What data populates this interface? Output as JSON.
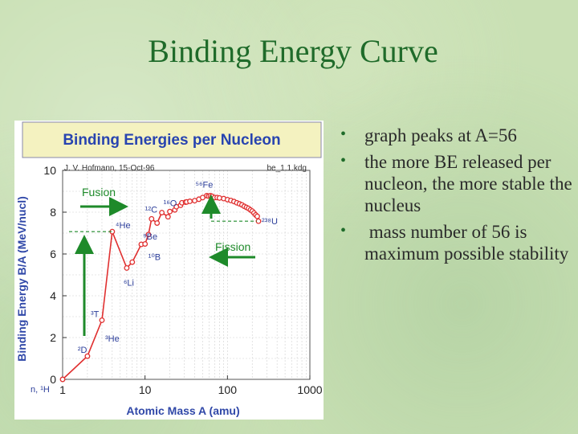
{
  "slide": {
    "title": "Binding Energy Curve",
    "bullets": [
      "graph peaks at A=56",
      "the more BE released per nucleon, the more stable the nucleus",
      " mass number of 56 is maximum possible stability"
    ]
  },
  "colors": {
    "title": "#1f6b2a",
    "curve": "#e03030",
    "arrow": "#1e8a2a",
    "chart_title_text": "#2844b0",
    "chart_title_bg": "#f4f2c0",
    "axis_text": "#3048a8"
  },
  "chart_data": {
    "type": "line",
    "title": "Binding Energies per Nucleon",
    "author": "J. V. Hofmann, 15-Oct-96",
    "file": "be_1.1.kdg",
    "xlabel": "Atomic Mass A (amu)",
    "ylabel": "Binding Energy B/A (MeV/nucl)",
    "xscale": "log",
    "xlim": [
      1,
      1000
    ],
    "ylim": [
      0,
      10
    ],
    "x_ticks": [
      "1",
      "10",
      "100",
      "1000"
    ],
    "y_ticks": [
      "0",
      "2",
      "4",
      "6",
      "8",
      "10"
    ],
    "x_tick_values": [
      1,
      10,
      100,
      1000
    ],
    "y_tick_values": [
      0,
      2,
      4,
      6,
      8,
      10
    ],
    "grid": true,
    "series": [
      {
        "values": [
          [
            1,
            0
          ],
          [
            2,
            1.11
          ],
          [
            3,
            2.83
          ],
          [
            4,
            7.07
          ],
          [
            6,
            5.33
          ],
          [
            7,
            5.61
          ],
          [
            9,
            6.46
          ],
          [
            10,
            6.48
          ],
          [
            11,
            6.93
          ],
          [
            12,
            7.68
          ],
          [
            14,
            7.48
          ],
          [
            16,
            7.98
          ],
          [
            19,
            7.78
          ],
          [
            20,
            8.03
          ],
          [
            23,
            8.11
          ],
          [
            24,
            8.26
          ],
          [
            27,
            8.33
          ],
          [
            28,
            8.45
          ],
          [
            31,
            8.48
          ],
          [
            32,
            8.49
          ],
          [
            35,
            8.52
          ],
          [
            40,
            8.55
          ],
          [
            45,
            8.62
          ],
          [
            50,
            8.7
          ],
          [
            56,
            8.79
          ],
          [
            59,
            8.77
          ],
          [
            62,
            8.79
          ],
          [
            65,
            8.76
          ],
          [
            70,
            8.7
          ],
          [
            75,
            8.7
          ],
          [
            80,
            8.68
          ],
          [
            90,
            8.65
          ],
          [
            100,
            8.6
          ],
          [
            110,
            8.56
          ],
          [
            120,
            8.51
          ],
          [
            130,
            8.45
          ],
          [
            140,
            8.4
          ],
          [
            150,
            8.35
          ],
          [
            160,
            8.28
          ],
          [
            170,
            8.23
          ],
          [
            180,
            8.18
          ],
          [
            190,
            8.11
          ],
          [
            200,
            8.05
          ],
          [
            210,
            7.96
          ],
          [
            220,
            7.87
          ],
          [
            230,
            7.8
          ],
          [
            238,
            7.57
          ]
        ]
      }
    ],
    "annotations": [
      {
        "text": "n, ¹H",
        "x": 1,
        "y": 0
      },
      {
        "text": "²D",
        "x": 2,
        "y": 1.11
      },
      {
        "text": "³T",
        "x": 3,
        "y": 2.83
      },
      {
        "text": "³He",
        "x": 3,
        "y": 2.57
      },
      {
        "text": "⁴He",
        "x": 4,
        "y": 7.07
      },
      {
        "text": "⁶Li",
        "x": 6,
        "y": 5.33
      },
      {
        "text": "⁹Be",
        "x": 9,
        "y": 6.46
      },
      {
        "text": "¹⁰B",
        "x": 10,
        "y": 6.48
      },
      {
        "text": "¹²C",
        "x": 12,
        "y": 7.68
      },
      {
        "text": "¹⁶O",
        "x": 16,
        "y": 7.98
      },
      {
        "text": "⁵⁶Fe",
        "x": 56,
        "y": 8.79
      },
      {
        "text": "²³⁸U",
        "x": 238,
        "y": 7.57
      }
    ],
    "arrow_labels": {
      "fusion": "Fusion",
      "fission": "Fission"
    }
  }
}
